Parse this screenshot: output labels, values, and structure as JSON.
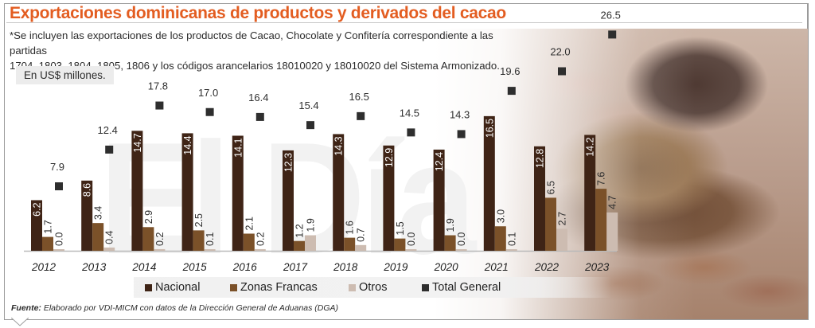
{
  "title": "Exportaciones dominicanas de productos y derivados del cacao",
  "note_line1": "*Se incluyen las exportaciones de los productos de Cacao, Chocolate y Confitería correspondiente a las partidas",
  "note_line2": "1704, 1803, 1804, 1805, 1806 y los códigos arancelarios 18010020 y 18010020 del Sistema Armonizado.",
  "unit_label": "En US$ millones.",
  "watermark": "El Día",
  "source_label": "Fuente:",
  "source_text": "Elaborado por VDI-MICM con datos de la Dirección General de Aduanas (DGA)",
  "colors": {
    "title": "#e35d21",
    "nacional": "#3f2416",
    "zonas_francas": "#7b5129",
    "otros": "#cdbcb1",
    "total_general": "#2e2e2e"
  },
  "chart_data": {
    "type": "bar",
    "title": "Exportaciones dominicanas de productos y derivados del cacao",
    "xlabel": "",
    "ylabel": "En US$ millones.",
    "ylim": [
      0,
      28
    ],
    "grid": false,
    "legend_position": "bottom",
    "categories": [
      "2012",
      "2013",
      "2014",
      "2015",
      "2016",
      "2017",
      "2018",
      "2019",
      "2020",
      "2021",
      "2022",
      "2023"
    ],
    "series": [
      {
        "name": "Nacional",
        "kind": "bar",
        "color": "#3f2416",
        "values": [
          6.2,
          8.6,
          14.7,
          14.4,
          14.1,
          12.3,
          14.3,
          12.9,
          12.4,
          16.5,
          12.8,
          14.2
        ]
      },
      {
        "name": "Zonas Francas",
        "kind": "bar",
        "color": "#7b5129",
        "values": [
          1.7,
          3.4,
          2.9,
          2.5,
          2.1,
          1.2,
          1.6,
          1.5,
          1.9,
          3.0,
          6.5,
          7.6
        ]
      },
      {
        "name": "Otros",
        "kind": "bar",
        "color": "#cdbcb1",
        "values": [
          0.0,
          0.4,
          0.2,
          0.1,
          0.2,
          1.9,
          0.7,
          0.0,
          0.0,
          0.1,
          2.7,
          4.7
        ]
      },
      {
        "name": "Total General",
        "kind": "marker",
        "color": "#2e2e2e",
        "values": [
          7.9,
          12.4,
          17.8,
          17.0,
          16.4,
          15.4,
          16.5,
          14.5,
          14.3,
          19.6,
          22.0,
          26.5
        ]
      }
    ],
    "legend": [
      "Nacional",
      "Zonas Francas",
      "Otros",
      "Total General"
    ]
  }
}
